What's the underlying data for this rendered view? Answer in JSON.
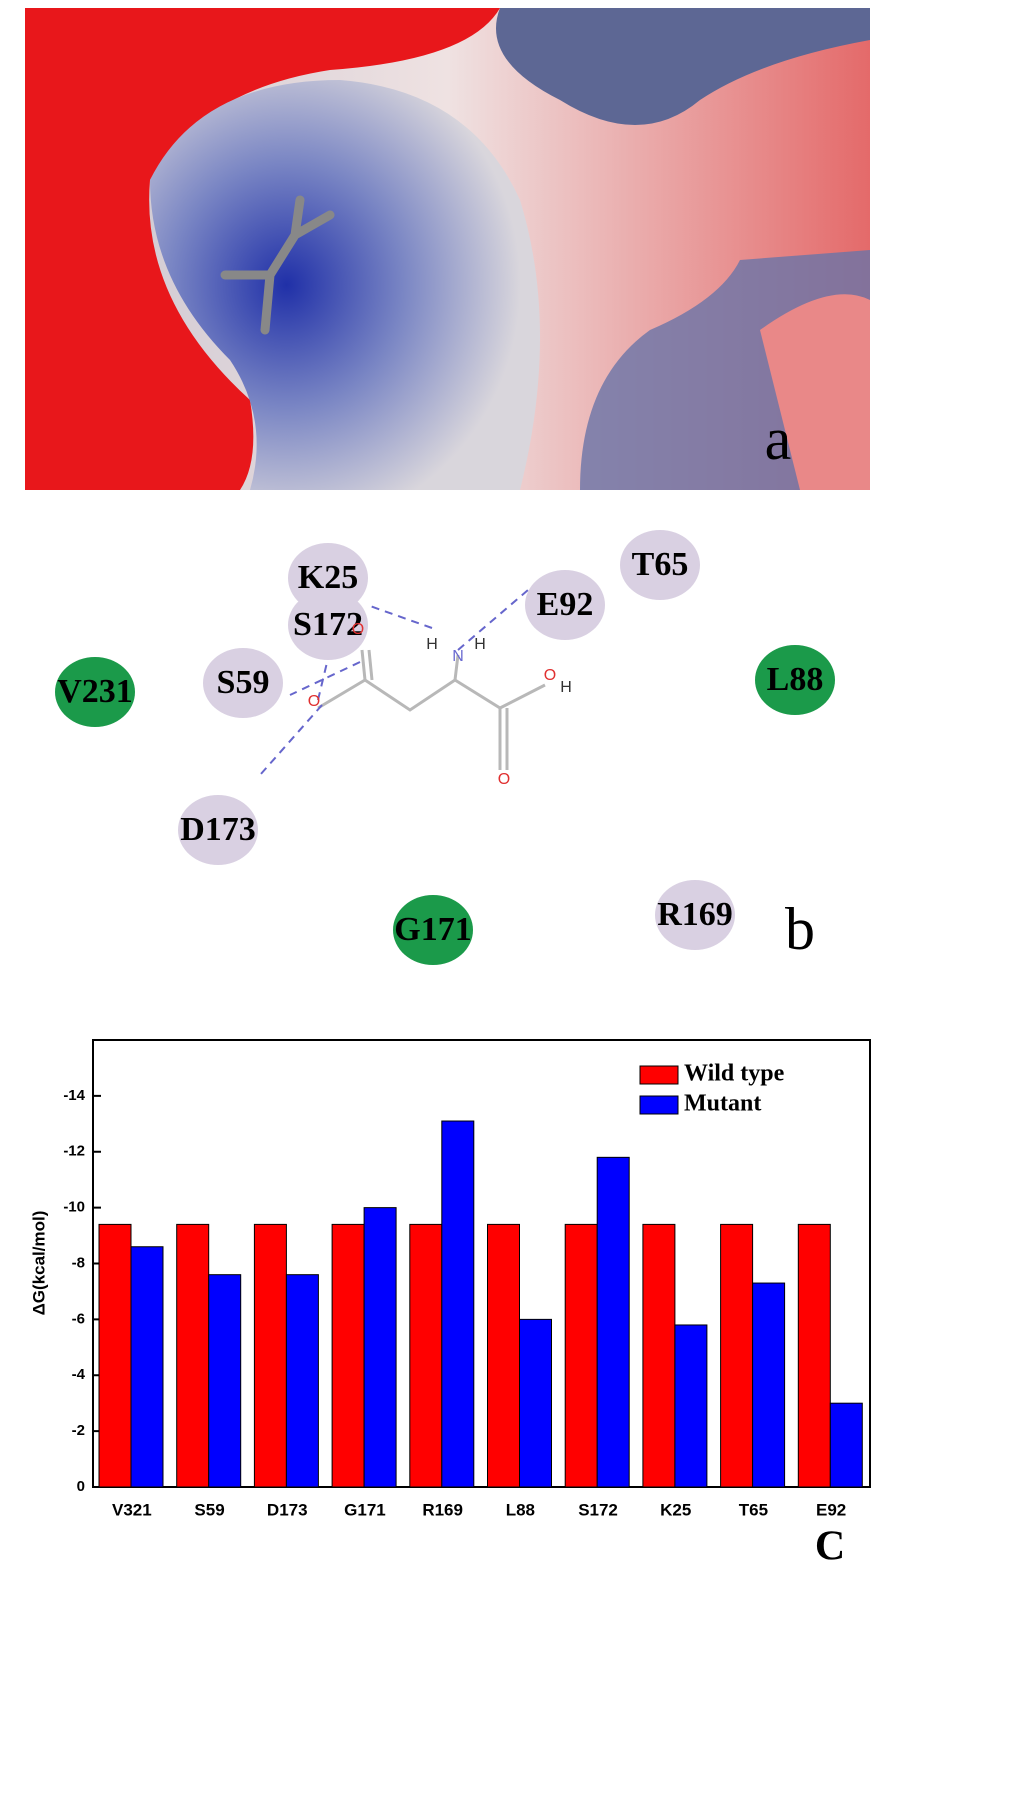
{
  "panel_a": {
    "label": "a"
  },
  "panel_b": {
    "label": "b",
    "residues": [
      {
        "name": "K25",
        "color": "#d9d0e2"
      },
      {
        "name": "T65",
        "color": "#d9d0e2"
      },
      {
        "name": "E92",
        "color": "#d9d0e2"
      },
      {
        "name": "S172",
        "color": "#d9d0e2"
      },
      {
        "name": "L88",
        "color": "#1b9a4a"
      },
      {
        "name": "V231",
        "color": "#1b9a4a"
      },
      {
        "name": "S59",
        "color": "#d9d0e2"
      },
      {
        "name": "D173",
        "color": "#d9d0e2"
      },
      {
        "name": "G171",
        "color": "#1b9a4a"
      },
      {
        "name": "R169",
        "color": "#d9d0e2"
      }
    ],
    "atoms": [
      "O",
      "O",
      "O",
      "O",
      "H",
      "H",
      "N",
      "H"
    ]
  },
  "chart_data": {
    "type": "bar",
    "y_label": "ΔG(kcal/mol)",
    "x_label": "C",
    "categories": [
      "V321",
      "S59",
      "D173",
      "G171",
      "R169",
      "L88",
      "S172",
      "K25",
      "T65",
      "E92"
    ],
    "series": [
      {
        "name": "Wild type",
        "color": "#ff0000",
        "values": [
          -9.4,
          -9.4,
          -9.4,
          -9.4,
          -9.4,
          -9.4,
          -9.4,
          -9.4,
          -9.4,
          -9.4
        ]
      },
      {
        "name": "Mutant",
        "color": "#0000ff",
        "values": [
          -8.6,
          -7.6,
          -7.6,
          -10.0,
          -13.1,
          -6.0,
          -11.8,
          -5.8,
          -7.3,
          -3.0
        ]
      }
    ],
    "ylim": [
      0,
      -16
    ],
    "yticks": [
      0,
      -2,
      -4,
      -6,
      -8,
      -10,
      -12,
      -14
    ],
    "legend": "top-right"
  }
}
